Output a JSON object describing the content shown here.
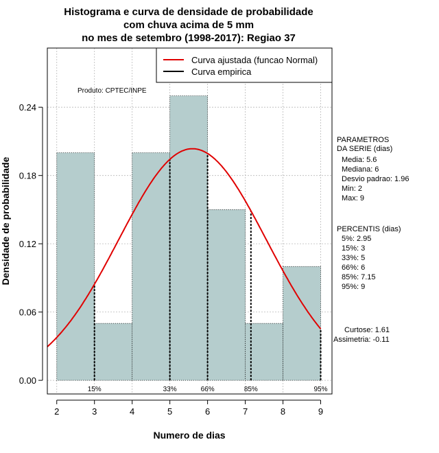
{
  "colors": {
    "bar_fill": "#b5cdcd",
    "fitted_curve": "#e00000",
    "grid": "#b8b8b8",
    "axis": "#000000"
  },
  "chart_data": {
    "type": "bar",
    "title": [
      "Histograma e curva de densidade de probabilidade",
      "com chuva acima de 5 mm",
      "no mes de setembro (1998-2017): Regiao 37"
    ],
    "xlabel": "Numero de dias",
    "ylabel": "Densidade de probabilidade",
    "xlim": [
      1.75,
      9.3
    ],
    "ylim": [
      -0.012,
      0.292
    ],
    "xticks": [
      2,
      3,
      4,
      5,
      6,
      7,
      8,
      9
    ],
    "yticks": [
      0.0,
      0.06,
      0.12,
      0.18,
      0.24
    ],
    "ytick_labels": [
      "0.00",
      "0.06",
      "0.12",
      "0.18",
      "0.24"
    ],
    "bins": [
      {
        "from": 2,
        "to": 3,
        "density": 0.2
      },
      {
        "from": 3,
        "to": 4,
        "density": 0.05
      },
      {
        "from": 4,
        "to": 5,
        "density": 0.2
      },
      {
        "from": 5,
        "to": 6,
        "density": 0.25
      },
      {
        "from": 6,
        "to": 7,
        "density": 0.15
      },
      {
        "from": 7,
        "to": 8,
        "density": 0.05
      },
      {
        "from": 8,
        "to": 9,
        "density": 0.1
      }
    ],
    "normal_fit": {
      "mean": 5.6,
      "sd": 1.96
    },
    "percentile_lines": [
      {
        "label": "15%",
        "x": 3
      },
      {
        "label": "33%",
        "x": 5
      },
      {
        "label": "66%",
        "x": 6
      },
      {
        "label": "85%",
        "x": 7.15
      },
      {
        "label": "95%",
        "x": 9
      }
    ],
    "legend": [
      {
        "label": "Curva ajustada (funcao Normal)",
        "color": "#e00000"
      },
      {
        "label": "Curva empirica",
        "color": "#000000"
      }
    ],
    "legend_position": "top-right",
    "grid": true,
    "annotation": "Produto: CPTEC/INPE"
  },
  "stats_panel": {
    "params_header": [
      "PARAMETROS",
      "DA SERIE (dias)"
    ],
    "params": [
      "Media: 5.6",
      "Mediana: 6",
      "Desvio padrao: 1.96",
      "Min: 2",
      "Max: 9"
    ],
    "percentis_header": "PERCENTIS (dias)",
    "percentis": [
      "5%: 2.95",
      "15%: 3",
      "33%: 5",
      "66%: 6",
      "85%: 7.15",
      "95%: 9"
    ],
    "curtose": "Curtose: 1.61",
    "assimetria": "Assimetria: -0.11"
  }
}
